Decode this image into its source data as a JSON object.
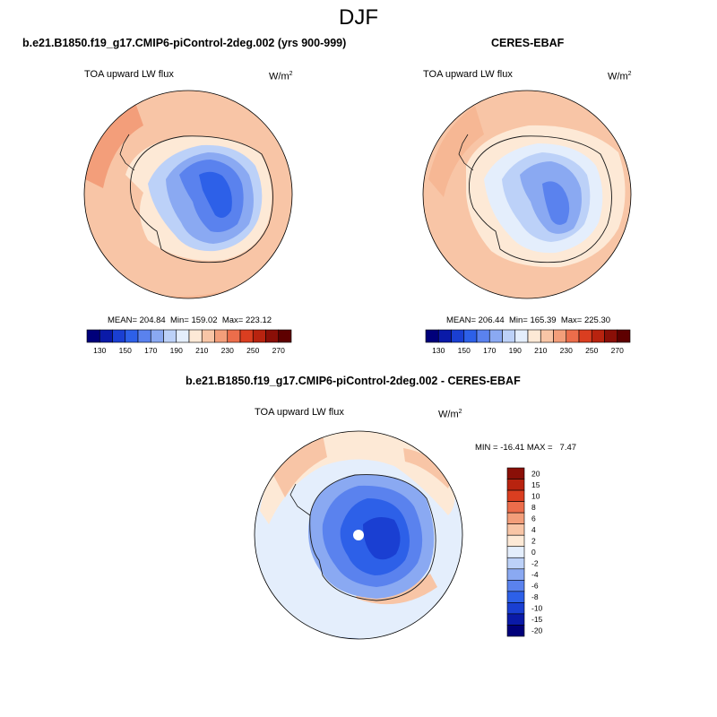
{
  "figure": {
    "season": "DJF",
    "colors": {
      "coast": "#1a1a1a"
    }
  },
  "panel_model": {
    "title": "b.e21.B1850.f19_g17.CMIP6-piControl-2deg.002 (yrs 900-999)",
    "variable": "TOA upward LW flux",
    "units_base": "W/m",
    "units_exp": "2",
    "mean": "204.84",
    "min": "159.02",
    "max": "223.12"
  },
  "panel_obs": {
    "title": "CERES-EBAF",
    "variable": "TOA upward LW flux",
    "units_base": "W/m",
    "units_exp": "2",
    "mean": "206.44",
    "min": "165.39",
    "max": "225.30"
  },
  "panel_diff": {
    "title": "b.e21.B1850.f19_g17.CMIP6-piControl-2deg.002 - CERES-EBAF",
    "variable": "TOA upward LW flux",
    "units_base": "W/m",
    "units_exp": "2",
    "min": "-16.41",
    "max": "7.47"
  },
  "colorbar_abs": {
    "colors": [
      "#00007a",
      "#0a1aa8",
      "#1a3fd2",
      "#2d60e8",
      "#5a82ee",
      "#8aa9f2",
      "#bcd1f8",
      "#e4eefc",
      "#fde9d6",
      "#f8c5a6",
      "#f39e7a",
      "#ec6d4b",
      "#da3e20",
      "#b8230f",
      "#8a0f07",
      "#5e0000"
    ],
    "ticks": [
      "130",
      "150",
      "170",
      "190",
      "210",
      "230",
      "250",
      "270"
    ]
  },
  "colorbar_diff": {
    "colors": [
      "#00007a",
      "#0a1aa8",
      "#1a3fd2",
      "#2d60e8",
      "#5a82ee",
      "#8aa9f2",
      "#bcd1f8",
      "#e4eefc",
      "#fde9d6",
      "#f8c5a6",
      "#f39e7a",
      "#ec6d4b",
      "#da3e20",
      "#b8230f",
      "#8a0f07"
    ],
    "ticks": [
      "20",
      "15",
      "10",
      "8",
      "6",
      "4",
      "2",
      "0",
      "-2",
      "-4",
      "-6",
      "-8",
      "-10",
      "-15",
      "-20"
    ]
  },
  "chart_data": [
    {
      "type": "heatmap",
      "title": "b.e21.B1850.f19_g17.CMIP6-piControl-2deg.002 (yrs 900-999)",
      "projection": "south polar stereographic",
      "variable": "TOA upward LW flux",
      "units": "W/m2",
      "mean": 204.84,
      "min": 159.02,
      "max": 223.12,
      "levels": [
        130,
        140,
        150,
        160,
        170,
        180,
        190,
        200,
        210,
        220,
        230,
        240,
        250,
        260,
        270
      ]
    },
    {
      "type": "heatmap",
      "title": "CERES-EBAF",
      "projection": "south polar stereographic",
      "variable": "TOA upward LW flux",
      "units": "W/m2",
      "mean": 206.44,
      "min": 165.39,
      "max": 225.3,
      "levels": [
        130,
        140,
        150,
        160,
        170,
        180,
        190,
        200,
        210,
        220,
        230,
        240,
        250,
        260,
        270
      ]
    },
    {
      "type": "heatmap",
      "title": "b.e21.B1850.f19_g17.CMIP6-piControl-2deg.002 - CERES-EBAF",
      "projection": "south polar stereographic",
      "variable": "TOA upward LW flux",
      "units": "W/m2",
      "min": -16.41,
      "max": 7.47,
      "levels": [
        -20,
        -15,
        -10,
        -8,
        -6,
        -4,
        -2,
        0,
        2,
        4,
        6,
        8,
        10,
        15,
        20
      ]
    }
  ]
}
